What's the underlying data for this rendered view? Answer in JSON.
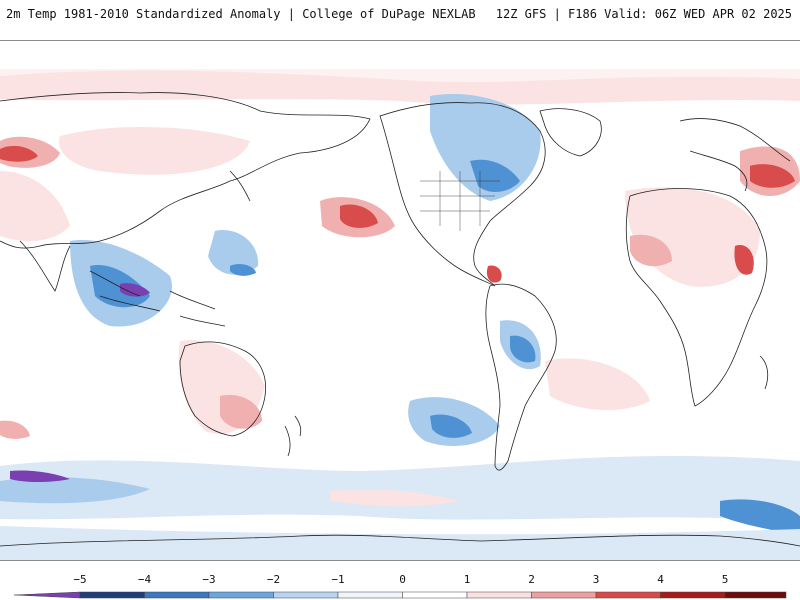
{
  "header": {
    "title": "2m Temp 1981-2010 Standardized Anomaly | College of DuPage NEXLAB",
    "run_info": "12Z GFS | F186 Valid: 06Z WED APR 02 2025"
  },
  "colorbar": {
    "ticks": [
      "−5",
      "−4",
      "−3",
      "−2",
      "−1",
      "0",
      "1",
      "2",
      "3",
      "4",
      "5"
    ],
    "colors": [
      "#7a3fb0",
      "#203d7a",
      "#3a78c0",
      "#6ba6dc",
      "#b8d3ee",
      "#eef4fb",
      "#ffffff",
      "#fbe0e0",
      "#eca0a0",
      "#d84a4a",
      "#a51c1c",
      "#6e0b0b",
      "#f0a21e"
    ]
  },
  "map": {
    "palette": {
      "neg_light": "#dbe8f6",
      "neg_mid": "#a9cbec",
      "neg_strong": "#4e92d4",
      "neg_extreme": "#7a3fb0",
      "pos_light": "#fbe3e3",
      "pos_mid": "#f1b0b0",
      "pos_strong": "#d94c4c",
      "pos_extreme": "#a51c1c",
      "coast": "#222222"
    }
  }
}
